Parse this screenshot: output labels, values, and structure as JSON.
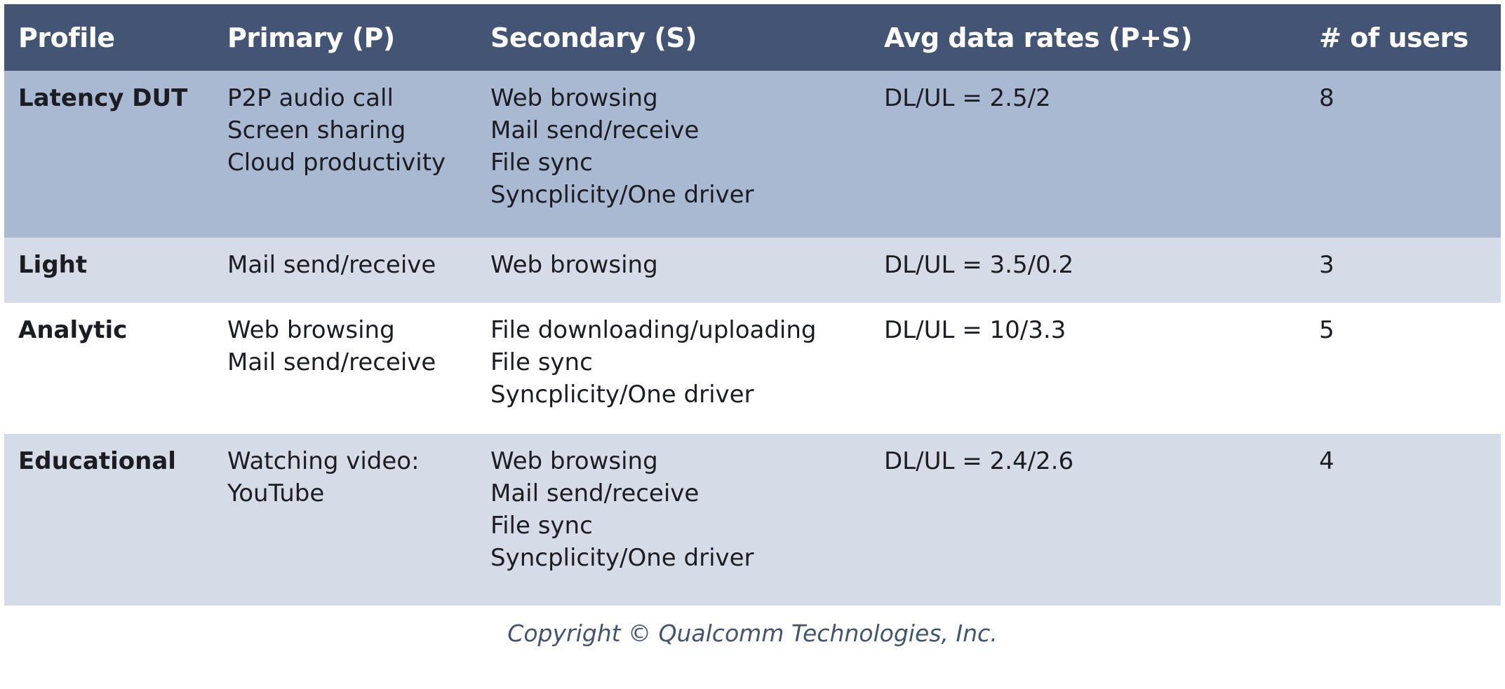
{
  "colors": {
    "header_bg": "#435474",
    "header_text": "#ffffff",
    "row_bg": [
      "#a9b9d2",
      "#d5dbe7",
      "#ffffff",
      "#d5dbe7"
    ],
    "body_text": "#1b1d22",
    "copyright_text": "#43546f"
  },
  "table": {
    "headers": [
      "Profile",
      "Primary (P)",
      "Secondary (S)",
      "Avg data rates  (P+S)",
      "# of users"
    ],
    "rows": [
      {
        "profile": "Latency DUT",
        "primary": [
          "P2P audio call",
          "Screen sharing",
          "Cloud productivity"
        ],
        "secondary": [
          "Web browsing",
          "Mail send/receive",
          "File sync",
          "Syncplicity/One driver"
        ],
        "avg_rate": "DL/UL = 2.5/2",
        "users": "8"
      },
      {
        "profile": "Light",
        "primary": [
          "Mail send/receive"
        ],
        "secondary": [
          "Web browsing"
        ],
        "avg_rate": "DL/UL = 3.5/0.2",
        "users": "3"
      },
      {
        "profile": "Analytic",
        "primary": [
          "Web browsing",
          "Mail send/receive"
        ],
        "secondary": [
          "File downloading/uploading",
          "File sync",
          "Syncplicity/One driver"
        ],
        "avg_rate": "DL/UL = 10/3.3",
        "users": "5"
      },
      {
        "profile": "Educational",
        "primary": [
          "Watching video:",
          "YouTube"
        ],
        "secondary": [
          "Web browsing",
          "Mail send/receive",
          "File sync",
          "Syncplicity/One driver"
        ],
        "avg_rate": "DL/UL = 2.4/2.6",
        "users": "4"
      }
    ]
  },
  "footer": {
    "copyright": "Copyright © Qualcomm Technologies, Inc."
  }
}
